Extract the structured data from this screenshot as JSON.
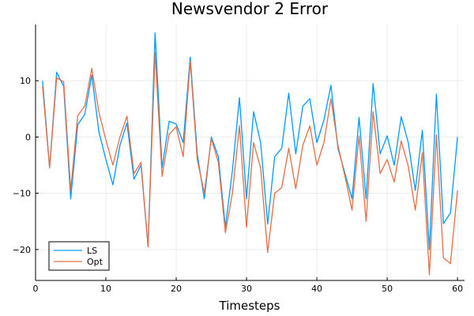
{
  "chart_data": {
    "type": "line",
    "title": "Newsvendor 2 Error",
    "xlabel": "Timesteps",
    "ylabel": "",
    "xlim": [
      0,
      61
    ],
    "ylim": [
      -25.5,
      20
    ],
    "xticks": [
      0,
      10,
      20,
      30,
      40,
      50,
      60
    ],
    "yticks": [
      -20,
      -10,
      0,
      10
    ],
    "grid": true,
    "legend_position": "bottom-left",
    "x": [
      1,
      2,
      3,
      4,
      5,
      6,
      7,
      8,
      9,
      10,
      11,
      12,
      13,
      14,
      15,
      16,
      17,
      18,
      19,
      20,
      21,
      22,
      23,
      24,
      25,
      26,
      27,
      28,
      29,
      30,
      31,
      32,
      33,
      34,
      35,
      36,
      37,
      38,
      39,
      40,
      41,
      42,
      43,
      44,
      45,
      46,
      47,
      48,
      49,
      50,
      51,
      52,
      53,
      54,
      55,
      56,
      57,
      58,
      59,
      60
    ],
    "series": [
      {
        "name": "LS",
        "color": "#009AFA",
        "values": [
          10,
          -5.5,
          11.5,
          9,
          -11,
          2.2,
          4,
          11,
          1,
          -4,
          -8.5,
          -1.5,
          2.5,
          -7.5,
          -5,
          -19.5,
          18.5,
          -5.5,
          2.8,
          2.3,
          -1,
          14.2,
          -3,
          -11,
          0,
          -3.5,
          -16,
          -6,
          7,
          -11,
          4.5,
          -1,
          -15.5,
          -3.5,
          -2,
          7.8,
          -3,
          5.5,
          6.8,
          -1,
          3,
          9.2,
          -2,
          -6.5,
          -11,
          3.5,
          -11,
          9.5,
          -3,
          0.2,
          -5,
          3.6,
          -1,
          -9.5,
          1.2,
          -20,
          7.6,
          -15.4,
          -13.5,
          0
        ]
      },
      {
        "name": "Opt",
        "color": "#E26F46",
        "values": [
          9,
          -5.5,
          10.5,
          9.8,
          -9.5,
          3.8,
          5.5,
          12.2,
          4.5,
          -0.5,
          -5,
          0,
          3.7,
          -6.5,
          -4.5,
          -19.5,
          15,
          -7,
          0.5,
          1.8,
          -3.5,
          13.5,
          -4,
          -10,
          -0.3,
          -4.5,
          -17,
          -10,
          2,
          -16,
          -1,
          -5.5,
          -20.5,
          -10,
          -9,
          -2,
          -9.2,
          -1.5,
          2,
          -5,
          -1,
          6.8,
          -1.5,
          -7,
          -13,
          0.2,
          -15,
          4.5,
          -6.5,
          -4,
          -8,
          -0.7,
          -5.2,
          -13,
          -2.8,
          -24.5,
          0.4,
          -21.5,
          -22.5,
          -9.5
        ]
      }
    ]
  }
}
